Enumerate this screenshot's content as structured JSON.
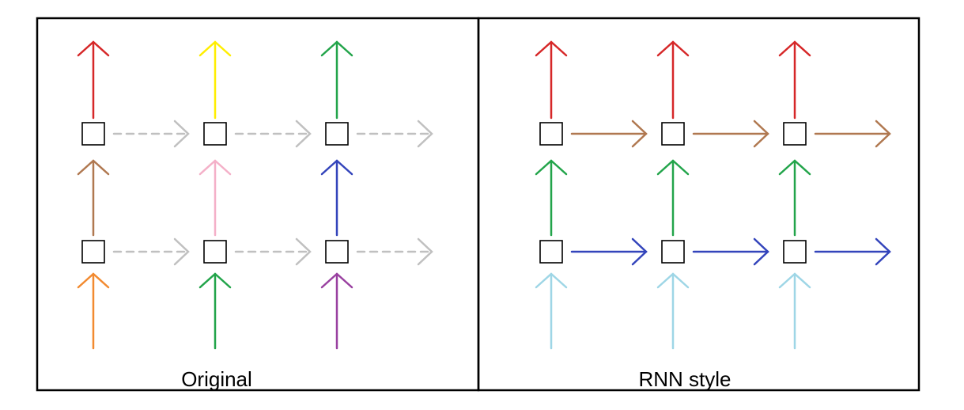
{
  "colors": {
    "red": "#d62728",
    "yellow": "#ffee00",
    "green": "#22a44a",
    "brown": "#b07850",
    "pink": "#f4b0c8",
    "blue": "#3344bb",
    "orange": "#f28a30",
    "purple": "#9940a0",
    "light_blue": "#9ed6e6",
    "gray": "#c0c0c0",
    "border": "#000000"
  },
  "panels": [
    {
      "key": "original",
      "title": "Original",
      "outputs": [
        "red",
        "yellow",
        "green"
      ],
      "middle": [
        "brown",
        "pink",
        "blue"
      ],
      "inputs": [
        "orange",
        "green",
        "purple"
      ],
      "top_recurrent": "gray",
      "bottom_recurrent": "gray",
      "recurrent_dashed": true
    },
    {
      "key": "rnn-style",
      "title": "RNN style",
      "outputs": [
        "red",
        "red",
        "red"
      ],
      "middle": [
        "green",
        "green",
        "green"
      ],
      "inputs": [
        "light_blue",
        "light_blue",
        "light_blue"
      ],
      "top_recurrent": "brown",
      "bottom_recurrent": "blue",
      "recurrent_dashed": false
    }
  ]
}
